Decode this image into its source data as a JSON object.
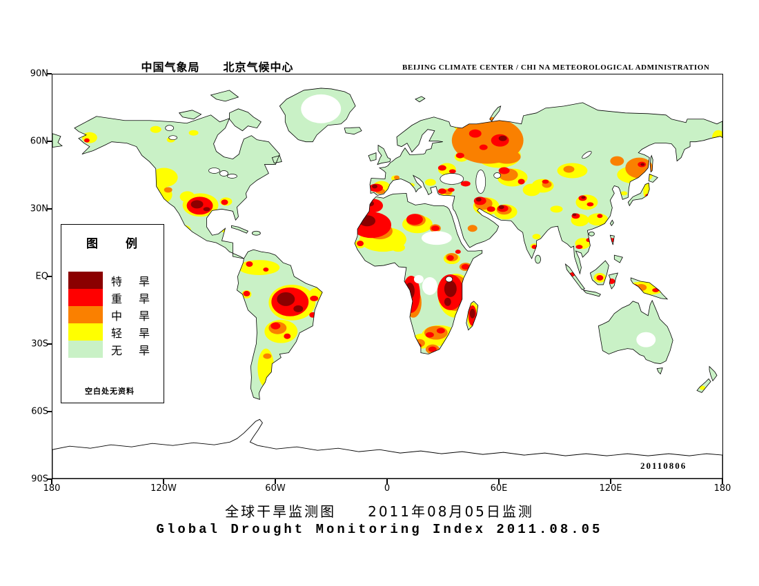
{
  "header": {
    "title_cn": "中国气象局　　北京气候中心",
    "title_en": "BEIJING CLIMATE CENTER / CHI NA METEOROLOGICAL ADMINISTRATION"
  },
  "map": {
    "date_stamp": "20110806",
    "y_axis_labels": [
      "90N",
      "60N",
      "30N",
      "EQ",
      "30S",
      "60S",
      "90S"
    ],
    "x_axis_labels": [
      "180",
      "120W",
      "60W",
      "0",
      "60E",
      "120E",
      "180"
    ],
    "ocean_color": "#FFFFFF",
    "no_data_color": "#FFFFFF"
  },
  "legend": {
    "title": "图　　例",
    "items": [
      {
        "key": "extreme",
        "label": "特　旱",
        "color": "#8B0000"
      },
      {
        "key": "severe",
        "label": "重　旱",
        "color": "#FF0000"
      },
      {
        "key": "moderate",
        "label": "中　旱",
        "color": "#FA8000"
      },
      {
        "key": "light",
        "label": "轻　旱",
        "color": "#FFFF00"
      },
      {
        "key": "none",
        "label": "无　旱",
        "color": "#C9F1C6"
      }
    ],
    "note": "空白处无资料"
  },
  "footer": {
    "title_cn": "全球干旱监测图　　2011年08月05日监测",
    "title_en": "Global Drought Monitoring Index  2011.08.05"
  }
}
